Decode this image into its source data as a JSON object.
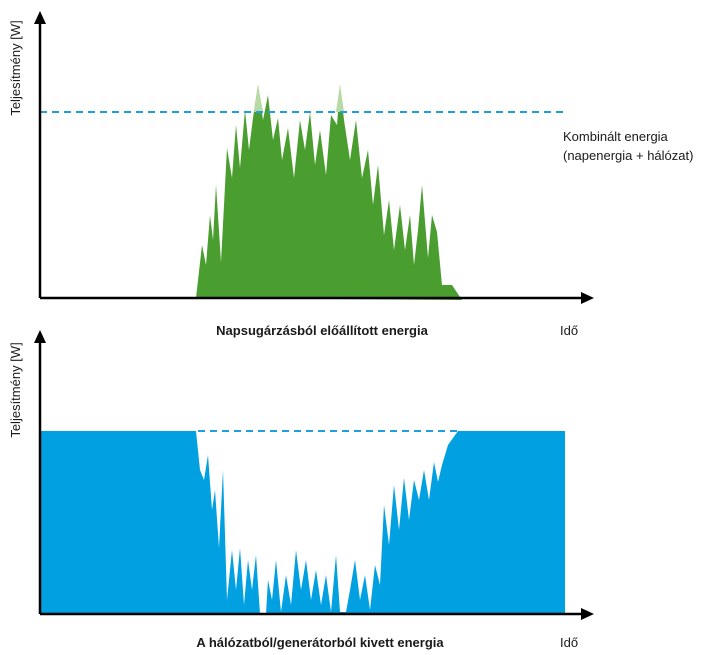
{
  "colors": {
    "solar_green": "#4a9e2f",
    "solar_peak_light": "#b7d9a3",
    "grid_blue": "#00a0e1",
    "dashed_line": "#1f9ee0",
    "axis": "#000000"
  },
  "top_panel": {
    "y_axis_label": "Teljesítmény [W]",
    "x_axis_label": "Idő",
    "caption": "Napsugárzásból előállított energia",
    "dashed_label_line1": "Kombinált energia",
    "dashed_label_line2": "(napenergia + hálózat)"
  },
  "bottom_panel": {
    "y_axis_label": "Teljesítmény [W]",
    "x_axis_label": "Idő",
    "caption": "A hálózatból/generátorból kivett energia"
  },
  "icons": {
    "y_axis_arrow": "arrow-up-icon",
    "x_axis_arrow": "arrow-right-icon"
  }
}
